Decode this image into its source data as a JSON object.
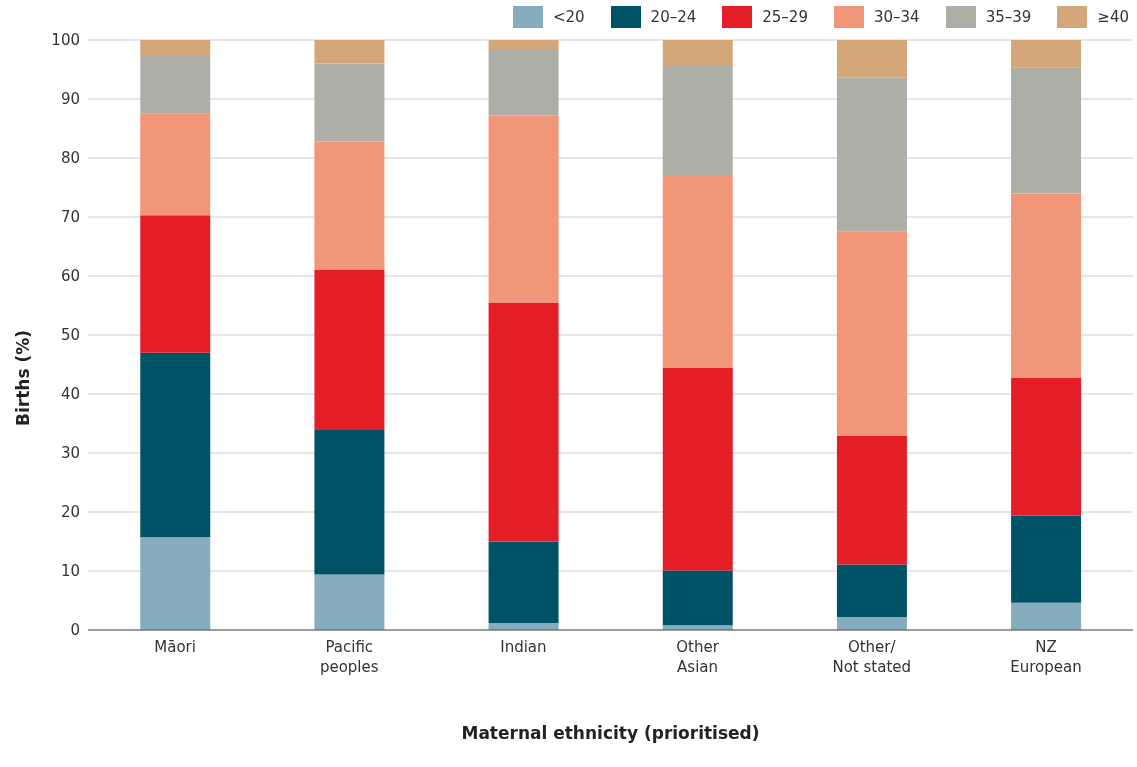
{
  "chart_data": {
    "type": "bar",
    "stacked": true,
    "xlabel": "Maternal ethnicity (prioritised)",
    "ylabel": "Births (%)",
    "categories": [
      "Māori",
      "Pacific\npeoples",
      "Indian",
      "Other\nAsian",
      "Other/\nNot stated",
      "NZ\nEuropean"
    ],
    "series": [
      {
        "name": "<20",
        "color": "#85adbd",
        "values": [
          15.7,
          9.4,
          1.2,
          0.8,
          2.2,
          4.6
        ]
      },
      {
        "name": "20–24",
        "color": "#005366",
        "values": [
          31.3,
          24.5,
          13.8,
          9.3,
          8.9,
          14.8
        ]
      },
      {
        "name": "25–29",
        "color": "#e41e26",
        "values": [
          23.3,
          27.1,
          40.5,
          34.4,
          21.8,
          23.3
        ]
      },
      {
        "name": "30–34",
        "color": "#f29679",
        "values": [
          17.2,
          21.8,
          31.7,
          32.6,
          34.7,
          31.3
        ]
      },
      {
        "name": "35–39",
        "color": "#adafa6",
        "values": [
          9.8,
          13.2,
          11.1,
          18.5,
          26.0,
          21.4
        ]
      },
      {
        "name": "≥40",
        "color": "#d4a77a",
        "values": [
          2.7,
          4.0,
          1.7,
          4.4,
          6.4,
          4.6
        ]
      }
    ],
    "ylim": [
      0,
      100
    ],
    "yticks": [
      0,
      10,
      20,
      30,
      40,
      50,
      60,
      70,
      80,
      90,
      100
    ],
    "grid": "y",
    "legend": "top right"
  }
}
